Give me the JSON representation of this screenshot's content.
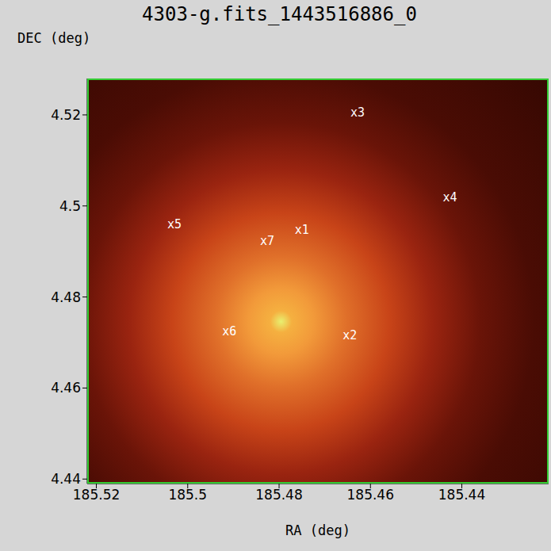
{
  "chart_data": {
    "type": "scatter",
    "title": "4303-g.fits_1443516886_0",
    "xlabel": "RA (deg)",
    "ylabel": "DEC (deg)",
    "x": [
      185.475,
      185.4645,
      185.4628,
      185.4426,
      185.5029,
      185.4909,
      185.4826
    ],
    "y": [
      4.4947,
      4.4715,
      4.5205,
      4.5018,
      4.4959,
      4.4724,
      4.4923
    ],
    "labels": [
      "x1",
      "x2",
      "x3",
      "x4",
      "x5",
      "x6",
      "x7"
    ],
    "xlim": [
      185.522,
      185.421
    ],
    "ylim": [
      4.439,
      4.528
    ],
    "xticks": [
      185.52,
      185.5,
      185.48,
      185.46,
      185.44
    ],
    "yticks": [
      4.44,
      4.46,
      4.48,
      4.5,
      4.52
    ],
    "color": "#ffffff",
    "grid": false
  }
}
